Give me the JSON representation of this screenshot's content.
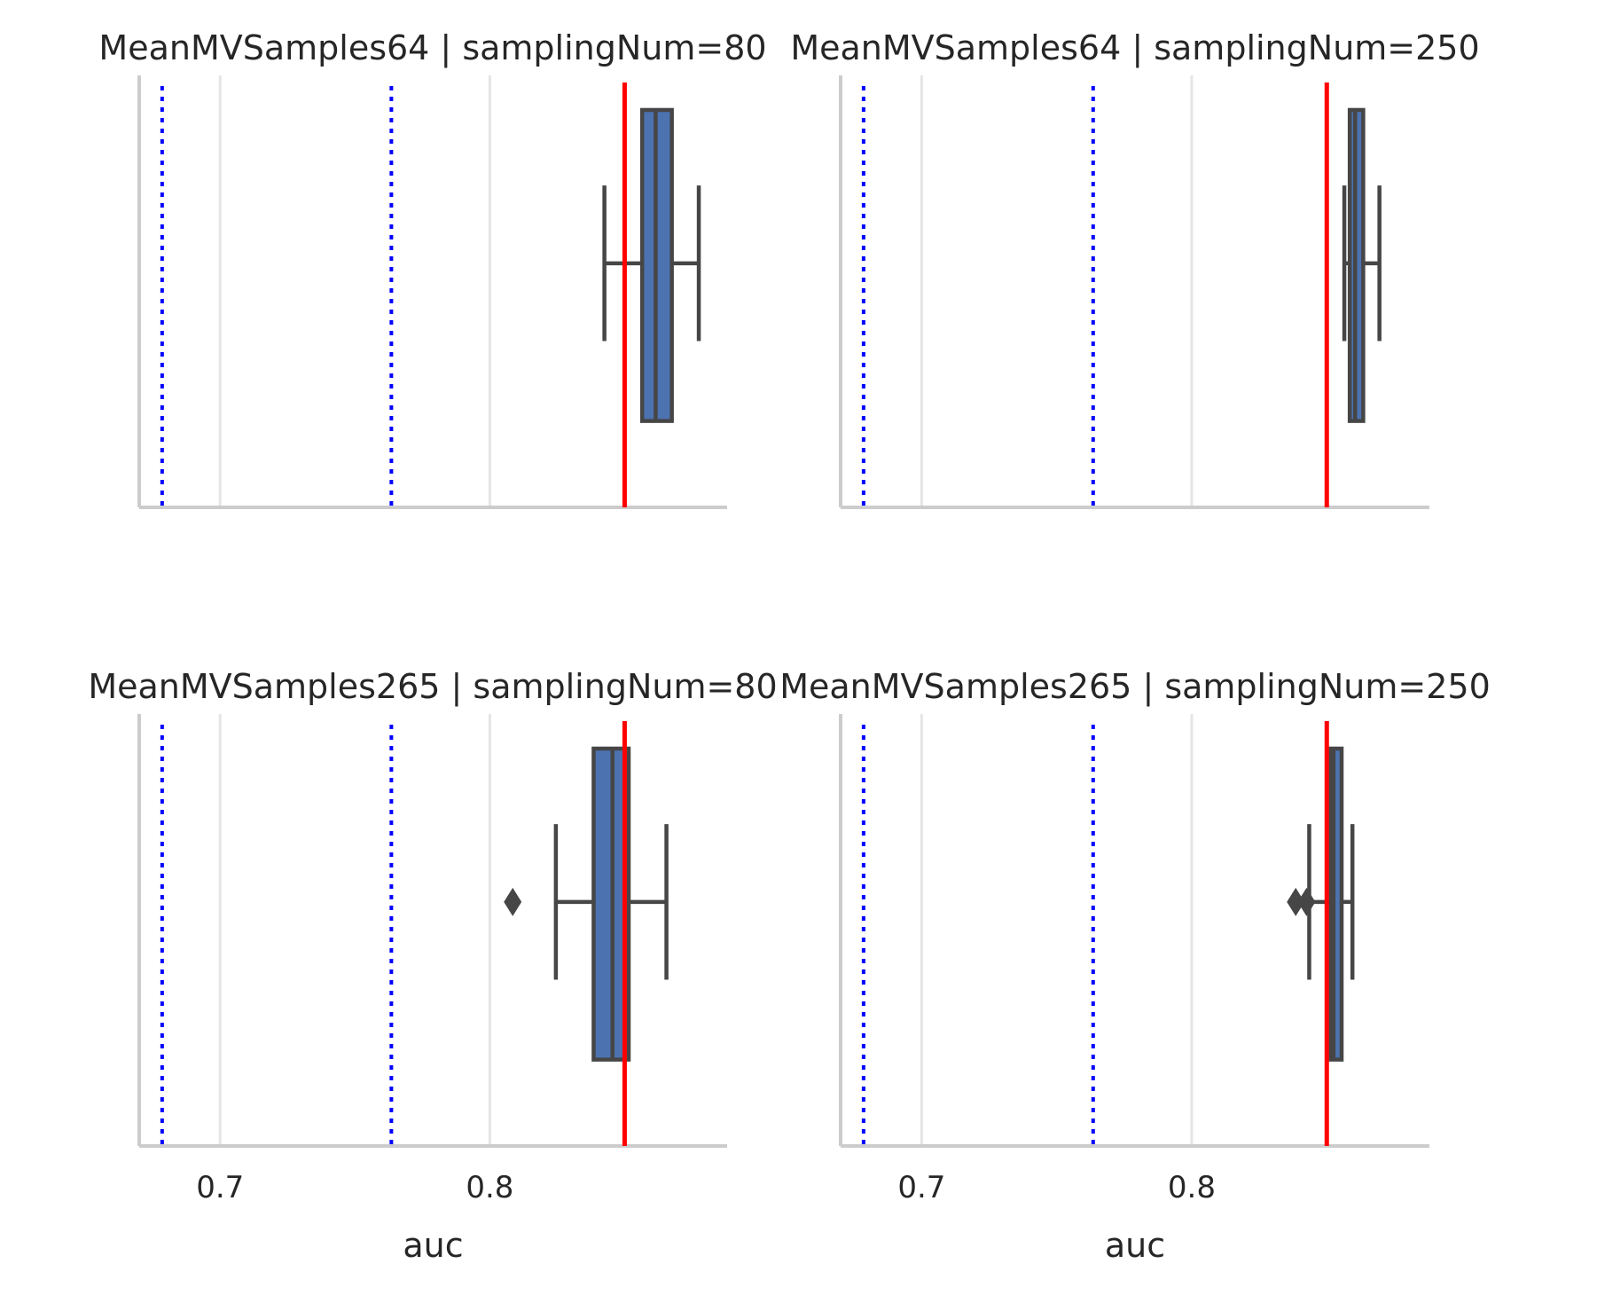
{
  "chart_data": {
    "type": "box",
    "xlabel": "auc",
    "xlim": [
      0.67,
      0.888
    ],
    "xticks": [
      0.7,
      0.8
    ],
    "xtick_labels": [
      "0.7",
      "0.8"
    ],
    "grid": true,
    "colors": {
      "box": "#4c72b0",
      "box_edge": "#464646",
      "reference_line": "#ff0000",
      "dotted_lines": "#0000ff",
      "grid": "#e5e5e5",
      "spine": "#cccccc"
    },
    "panels": [
      {
        "title": "MeanMVSamples64 | samplingNum=80",
        "box": {
          "whislo": 0.8425,
          "q1": 0.8565,
          "median": 0.8615,
          "q3": 0.8675,
          "whishi": 0.8775
        },
        "outliers": [],
        "reference_line": 0.85,
        "dotted_lines": [
          0.6785,
          0.7635
        ],
        "show_xticks": false
      },
      {
        "title": "MeanMVSamples64 | samplingNum=250",
        "box": {
          "whislo": 0.8565,
          "q1": 0.8585,
          "median": 0.8605,
          "q3": 0.8635,
          "whishi": 0.8695
        },
        "outliers": [],
        "reference_line": 0.85,
        "dotted_lines": [
          0.6785,
          0.7635
        ],
        "show_xticks": false
      },
      {
        "title": "MeanMVSamples265 | samplingNum=80",
        "box": {
          "whislo": 0.8245,
          "q1": 0.8385,
          "median": 0.8455,
          "q3": 0.8515,
          "whishi": 0.8655
        },
        "outliers": [
          0.8085
        ],
        "reference_line": 0.85,
        "dotted_lines": [
          0.6785,
          0.7635
        ],
        "show_xticks": true
      },
      {
        "title": "MeanMVSamples265 | samplingNum=250",
        "box": {
          "whislo": 0.8435,
          "q1": 0.8515,
          "median": 0.8525,
          "q3": 0.8555,
          "whishi": 0.8595
        },
        "outliers": [
          0.8385,
          0.8425
        ],
        "reference_line": 0.85,
        "dotted_lines": [
          0.6785,
          0.7635
        ],
        "show_xticks": true
      }
    ]
  }
}
